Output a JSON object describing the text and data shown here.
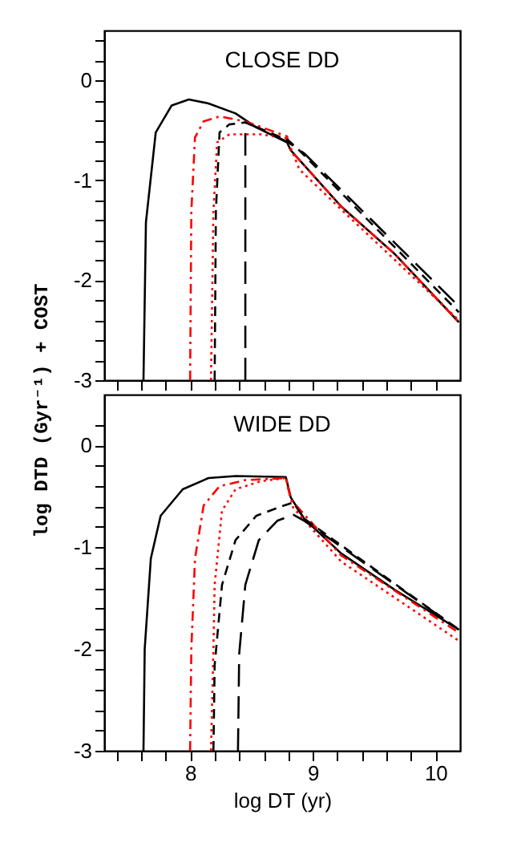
{
  "chart_data": [
    {
      "type": "line",
      "title": "CLOSE DD",
      "ylabel": "log DTD (Gyr⁻¹) + COST",
      "tick_labels": "y",
      "grid": false,
      "xlim": [
        7.3,
        10.2
      ],
      "xticks": [
        {
          "value": 7.4,
          "label": null
        },
        {
          "value": 7.6,
          "label": null
        },
        {
          "value": 7.8,
          "label": null
        },
        8,
        {
          "value": 8.2,
          "label": null
        },
        {
          "value": 8.4,
          "label": null
        },
        {
          "value": 8.6,
          "label": null
        },
        {
          "value": 8.8,
          "label": null
        },
        9,
        {
          "value": 9.2,
          "label": null
        },
        {
          "value": 9.4,
          "label": null
        },
        {
          "value": 9.6,
          "label": null
        },
        {
          "value": 9.8,
          "label": null
        },
        10
      ],
      "ylim": [
        -3,
        0.5
      ],
      "yticks": [
        -3,
        {
          "value": -2.8,
          "label": null
        },
        {
          "value": -2.6,
          "label": null
        },
        {
          "value": -2.4,
          "label": null
        },
        {
          "value": -2.2,
          "label": null
        },
        -2,
        {
          "value": -1.8,
          "label": null
        },
        {
          "value": -1.6,
          "label": null
        },
        {
          "value": -1.4,
          "label": null
        },
        {
          "value": -1.2,
          "label": null
        },
        -1,
        {
          "value": -0.8,
          "label": null
        },
        {
          "value": -0.6,
          "label": null
        },
        {
          "value": -0.4,
          "label": null
        },
        {
          "value": -0.2,
          "label": null
        },
        0,
        {
          "value": 0.2,
          "label": null
        },
        {
          "value": 0.4,
          "label": null
        }
      ],
      "series": [
        {
          "color": "#000000",
          "line_style": "solid",
          "x": [
            7.62,
            7.64,
            7.72,
            7.85,
            7.99,
            8.15,
            8.37,
            8.54,
            8.79,
            8.82,
            9.23,
            9.67,
            10.19
          ],
          "values": [
            -3,
            -1.42,
            -0.52,
            -0.25,
            -0.19,
            -0.23,
            -0.33,
            -0.47,
            -0.62,
            -0.7,
            -1.26,
            -1.74,
            -2.42
          ]
        },
        {
          "color": "#ff0000",
          "line_style": "dashdot",
          "x": [
            8.0,
            8.01,
            8.04,
            8.11,
            8.24,
            8.45,
            8.79,
            8.82,
            9.23,
            9.67,
            10.19
          ],
          "values": [
            -3,
            -1.31,
            -0.57,
            -0.41,
            -0.36,
            -0.41,
            -0.56,
            -0.7,
            -1.26,
            -1.74,
            -2.42
          ]
        },
        {
          "color": "#ff0000",
          "line_style": "dotted",
          "x": [
            8.17,
            8.19,
            8.22,
            8.32,
            8.58,
            8.79,
            8.89,
            9.23,
            10.19
          ],
          "values": [
            -3,
            -1.31,
            -0.62,
            -0.54,
            -0.54,
            -0.58,
            -0.89,
            -1.29,
            -2.4
          ]
        },
        {
          "color": "#000000",
          "line_style": "dashed",
          "x": [
            8.2,
            8.21,
            8.24,
            8.32,
            8.45,
            8.8,
            8.89,
            10.19
          ],
          "values": [
            -3,
            -1.31,
            -0.52,
            -0.44,
            -0.42,
            -0.6,
            -0.7,
            -2.32
          ]
        },
        {
          "color": "#000000",
          "line_style": "longdash",
          "x": [
            8.45,
            8.45,
            8.58,
            8.8,
            8.93,
            10.19
          ],
          "values": [
            -3,
            -0.42,
            -0.49,
            -0.62,
            -0.73,
            -2.26
          ]
        }
      ]
    },
    {
      "type": "line",
      "title": "WIDE DD",
      "xlabel": "log DT (yr)",
      "grid": false,
      "xlim": [
        7.3,
        10.2
      ],
      "xticks": [
        {
          "value": 7.4,
          "label": null
        },
        {
          "value": 7.6,
          "label": null
        },
        {
          "value": 7.8,
          "label": null
        },
        8,
        {
          "value": 8.2,
          "label": null
        },
        {
          "value": 8.4,
          "label": null
        },
        {
          "value": 8.6,
          "label": null
        },
        {
          "value": 8.8,
          "label": null
        },
        9,
        {
          "value": 9.2,
          "label": null
        },
        {
          "value": 9.4,
          "label": null
        },
        {
          "value": 9.6,
          "label": null
        },
        {
          "value": 9.8,
          "label": null
        },
        10
      ],
      "ylim": [
        -3,
        0.5
      ],
      "yticks": [
        -3,
        {
          "value": -2.8,
          "label": null
        },
        {
          "value": -2.6,
          "label": null
        },
        {
          "value": -2.4,
          "label": null
        },
        {
          "value": -2.2,
          "label": null
        },
        -2,
        {
          "value": -1.8,
          "label": null
        },
        {
          "value": -1.6,
          "label": null
        },
        {
          "value": -1.4,
          "label": null
        },
        {
          "value": -1.2,
          "label": null
        },
        -1,
        {
          "value": -0.8,
          "label": null
        },
        {
          "value": -0.6,
          "label": null
        },
        {
          "value": -0.4,
          "label": null
        },
        {
          "value": -0.2,
          "label": null
        },
        0,
        {
          "value": 0.2,
          "label": null
        }
      ],
      "series": [
        {
          "color": "#000000",
          "line_style": "solid",
          "x": [
            7.62,
            7.63,
            7.68,
            7.76,
            7.94,
            8.15,
            8.37,
            8.78,
            8.82,
            8.93,
            9.23,
            9.67,
            10.19
          ],
          "values": [
            -3,
            -2.0,
            -1.11,
            -0.69,
            -0.43,
            -0.32,
            -0.3,
            -0.31,
            -0.51,
            -0.72,
            -1.06,
            -1.42,
            -1.81
          ]
        },
        {
          "color": "#ff0000",
          "line_style": "dashdot",
          "x": [
            8.0,
            8.01,
            8.04,
            8.11,
            8.24,
            8.45,
            8.78,
            8.82,
            9.23,
            10.19
          ],
          "values": [
            -3,
            -2.0,
            -1.11,
            -0.59,
            -0.4,
            -0.34,
            -0.32,
            -0.53,
            -1.08,
            -1.84
          ]
        },
        {
          "color": "#ff0000",
          "line_style": "dotted",
          "x": [
            8.17,
            8.19,
            8.2,
            8.26,
            8.37,
            8.58,
            8.78,
            8.84,
            9.23,
            10.19
          ],
          "values": [
            -3,
            -2.0,
            -1.37,
            -0.64,
            -0.43,
            -0.35,
            -0.32,
            -0.61,
            -1.14,
            -1.92
          ]
        },
        {
          "color": "#000000",
          "line_style": "dashed",
          "x": [
            8.19,
            8.2,
            8.26,
            8.37,
            8.54,
            8.74,
            8.84,
            8.93,
            10.19
          ],
          "values": [
            -3,
            -2.16,
            -1.37,
            -0.93,
            -0.69,
            -0.6,
            -0.56,
            -0.72,
            -1.81
          ]
        },
        {
          "color": "#000000",
          "line_style": "longdash",
          "x": [
            8.39,
            8.4,
            8.45,
            8.56,
            8.71,
            8.84,
            8.93,
            10.19
          ],
          "values": [
            -3,
            -2.05,
            -1.37,
            -0.93,
            -0.74,
            -0.68,
            -0.74,
            -1.81
          ]
        }
      ]
    }
  ]
}
